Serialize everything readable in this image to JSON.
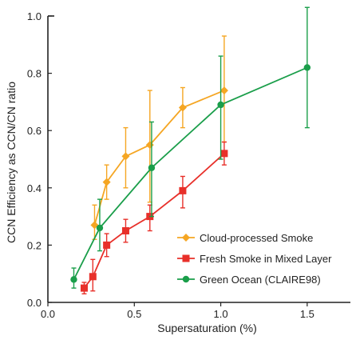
{
  "chart_data": {
    "type": "line",
    "xlabel": "Supersaturation (%)",
    "ylabel": "CCN Efficiency as CCN/CN ratio",
    "xlim": [
      0.0,
      1.75
    ],
    "ylim": [
      0.0,
      1.0
    ],
    "x_ticks": [
      "0.0",
      "0.5",
      "1.0",
      "1.5"
    ],
    "x_tick_values": [
      0.0,
      0.5,
      1.0,
      1.5
    ],
    "y_ticks": [
      "0.0",
      "0.2",
      "0.4",
      "0.6",
      "0.8",
      "1.0"
    ],
    "y_tick_values": [
      0.0,
      0.2,
      0.4,
      0.6,
      0.8,
      1.0
    ],
    "grid": false,
    "legend_position": "lower-right",
    "series": [
      {
        "name": "Cloud-processed Smoke",
        "color": "#f5a623",
        "marker": "diamond",
        "x": [
          0.27,
          0.34,
          0.45,
          0.59,
          0.78,
          1.02
        ],
        "y": [
          0.27,
          0.42,
          0.51,
          0.55,
          0.68,
          0.74
        ],
        "err_low": [
          0.22,
          0.36,
          0.4,
          0.35,
          0.61,
          0.56
        ],
        "err_high": [
          0.34,
          0.48,
          0.61,
          0.74,
          0.75,
          0.93
        ]
      },
      {
        "name": "Fresh Smoke in Mixed Layer",
        "color": "#e8302a",
        "marker": "square",
        "x": [
          0.21,
          0.26,
          0.34,
          0.45,
          0.59,
          0.78,
          1.02
        ],
        "y": [
          0.05,
          0.09,
          0.2,
          0.25,
          0.3,
          0.39,
          0.52
        ],
        "err_low": [
          0.03,
          0.04,
          0.16,
          0.21,
          0.25,
          0.33,
          0.48
        ],
        "err_high": [
          0.07,
          0.15,
          0.24,
          0.29,
          0.34,
          0.44,
          0.56
        ]
      },
      {
        "name": "Green Ocean (CLAIRE98)",
        "color": "#1a9e4a",
        "marker": "circle",
        "x": [
          0.15,
          0.3,
          0.6,
          1.0,
          1.5
        ],
        "y": [
          0.08,
          0.26,
          0.47,
          0.69,
          0.82
        ],
        "err_low": [
          0.05,
          0.18,
          0.3,
          0.5,
          0.61
        ],
        "err_high": [
          0.12,
          0.36,
          0.63,
          0.86,
          1.03
        ]
      }
    ]
  }
}
